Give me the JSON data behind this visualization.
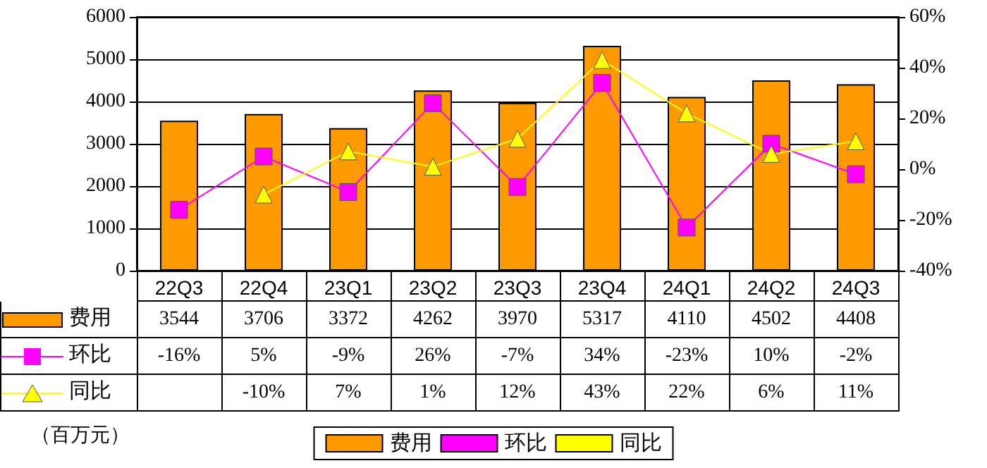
{
  "chart_data": {
    "type": "bar",
    "categories": [
      "22Q3",
      "22Q4",
      "23Q1",
      "23Q2",
      "23Q3",
      "23Q4",
      "24Q1",
      "24Q2",
      "24Q3"
    ],
    "series": [
      {
        "name": "费用",
        "color": "#ff9900",
        "values": [
          3544,
          3706,
          3372,
          4262,
          3970,
          5317,
          4110,
          4502,
          4408
        ],
        "value_labels": [
          "3544",
          "3706",
          "3372",
          "4262",
          "3970",
          "5317",
          "4110",
          "4502",
          "4408"
        ]
      },
      {
        "name": "环比",
        "type": "line",
        "axis": "y2",
        "marker": "square",
        "color": "#ff00ff",
        "values": [
          -16,
          5,
          -9,
          26,
          -7,
          34,
          -23,
          10,
          -2
        ],
        "value_labels": [
          "-16%",
          "5%",
          "-9%",
          "26%",
          "-7%",
          "34%",
          "-23%",
          "10%",
          "-2%"
        ]
      },
      {
        "name": "同比",
        "type": "line",
        "axis": "y2",
        "marker": "triangle",
        "color": "#ffff00",
        "values": [
          null,
          -10,
          7,
          1,
          12,
          43,
          22,
          6,
          11
        ],
        "value_labels": [
          null,
          "-10%",
          "7%",
          "1%",
          "12%",
          "43%",
          "22%",
          "6%",
          "11%"
        ]
      }
    ],
    "ylim": [
      0,
      6000
    ],
    "yticks": [
      0,
      1000,
      2000,
      3000,
      4000,
      5000,
      6000
    ],
    "y2lim": [
      -40,
      60
    ],
    "y2ticks": [
      {
        "value": -40,
        "label": "-40%"
      },
      {
        "value": -20,
        "label": "-20%"
      },
      {
        "value": 0,
        "label": "0%"
      },
      {
        "value": 20,
        "label": "20%"
      },
      {
        "value": 40,
        "label": "40%"
      },
      {
        "value": 60,
        "label": "60%"
      }
    ],
    "grid": "y",
    "legend": "bottom",
    "annotations": [
      "（百万元）"
    ]
  }
}
